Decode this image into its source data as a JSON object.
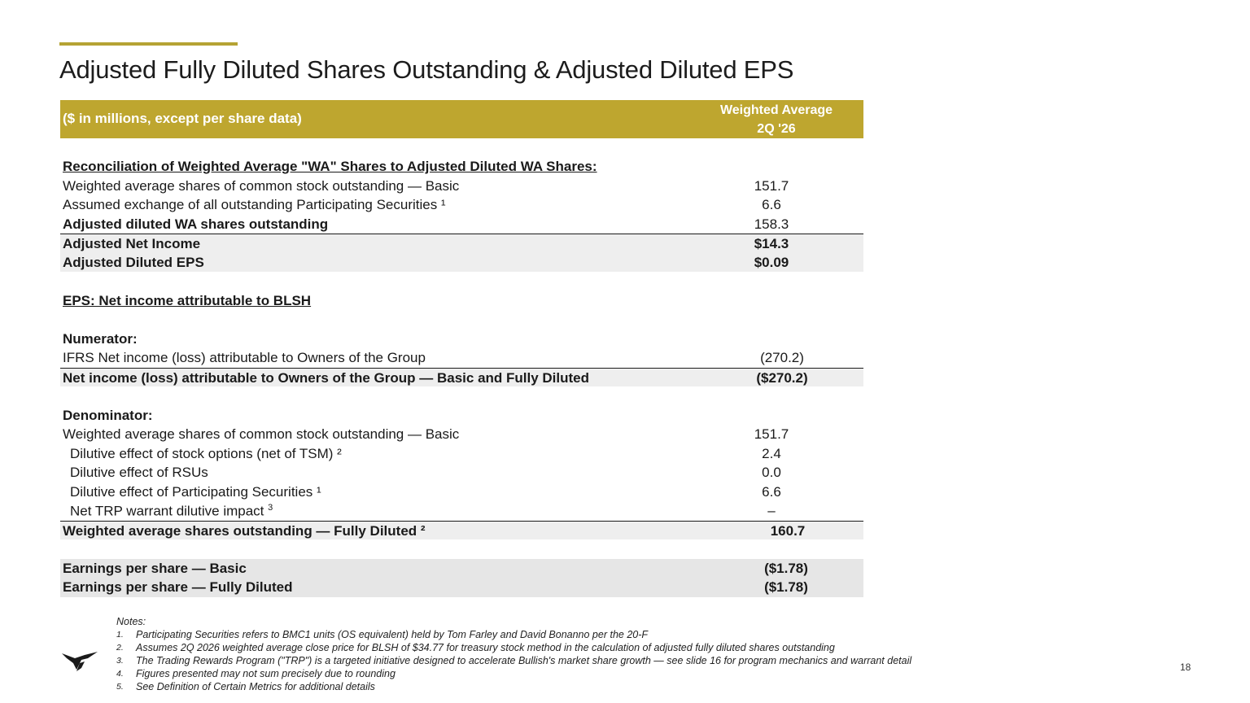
{
  "slide": {
    "title": "Adjusted Fully Diluted Shares Outstanding & Adjusted Diluted EPS",
    "page_number": "18",
    "accent_color": "#bea62f"
  },
  "table": {
    "header_left": "($ in millions, except per share data)",
    "header_right_line1": "Weighted Average",
    "header_right_line2": "2Q '26",
    "rows": [
      {
        "label": "Reconciliation of  Weighted Average \"WA\" Shares to Adjusted Diluted WA Shares:",
        "value": ""
      },
      {
        "label": "Weighted average shares of common stock outstanding — Basic",
        "value": "151.7"
      },
      {
        "label": "Assumed exchange of all outstanding Participating Securities ¹",
        "value": "6.6"
      },
      {
        "label": "Adjusted diluted WA shares outstanding",
        "value": "158.3"
      },
      {
        "label": "Adjusted Net Income",
        "value": "$14.3"
      },
      {
        "label": "Adjusted Diluted EPS",
        "value": "$0.09"
      },
      {
        "label": "EPS: Net income attributable to BLSH",
        "value": ""
      },
      {
        "label": "Numerator:",
        "value": ""
      },
      {
        "label": "IFRS Net income (loss) attributable to Owners of the Group",
        "value": "(270.2)"
      },
      {
        "label": "Net income (loss) attributable to Owners of the Group — Basic and Fully Diluted",
        "value": "($270.2)"
      },
      {
        "label": "Denominator:",
        "value": ""
      },
      {
        "label": "Weighted average shares of common stock outstanding — Basic",
        "value": "151.7"
      },
      {
        "label": "Dilutive effect of stock options (net of TSM) ²",
        "value": "2.4"
      },
      {
        "label": "Dilutive effect of RSUs",
        "value": "0.0"
      },
      {
        "label": "Dilutive effect of Participating Securities ¹",
        "value": "6.6"
      },
      {
        "label": "Net TRP warrant dilutive impact",
        "sup": "3",
        "value": "–"
      },
      {
        "label": "Weighted average shares outstanding — Fully Diluted ²",
        "value": "160.7"
      },
      {
        "label": "Earnings per share — Basic",
        "value": "($1.78)"
      },
      {
        "label": "Earnings per share — Fully Diluted",
        "value": "($1.78)"
      }
    ]
  },
  "notes": {
    "heading": "Notes:",
    "items": [
      {
        "num": "1.",
        "text": "Participating Securities refers to BMC1 units (OS equivalent) held by Tom Farley and David Bonanno per the 20-F"
      },
      {
        "num": "2.",
        "text": "Assumes 2Q 2026 weighted average close price for BLSH of $34.77 for treasury stock method in the calculation of adjusted fully diluted shares outstanding"
      },
      {
        "num": "3.",
        "text": "The Trading Rewards Program (\"TRP\") is a targeted initiative designed to accelerate Bullish's market share growth — see slide 16 for program mechanics and warrant detail"
      },
      {
        "num": "4.",
        "text": "Figures presented may not sum precisely due to rounding"
      },
      {
        "num": "5.",
        "text": "See Definition of Certain Metrics for additional details"
      }
    ]
  },
  "logo": {
    "icon": "bull-logo-icon"
  }
}
